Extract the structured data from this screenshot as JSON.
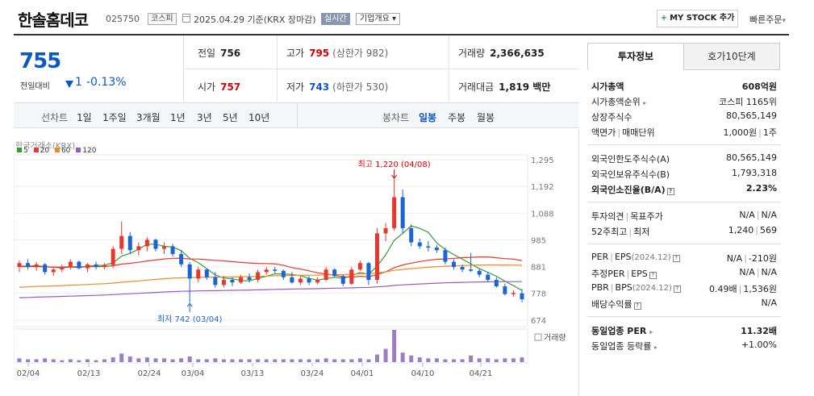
{
  "header": {
    "name": "한솔홈데코",
    "code": "025750",
    "market": "코스피",
    "date": "2025.04.29 기준(KRX 장마감)",
    "realtime": "실시간",
    "company_info": "기업개요",
    "mystock": "MY STOCK 추가",
    "quick_order": "빠른주문"
  },
  "price": {
    "current": "755",
    "change_label": "전일대비",
    "change": "1",
    "change_pct": "-0.13%"
  },
  "quote": {
    "prev_label": "전일",
    "prev": "756",
    "high_label": "고가",
    "high": "795",
    "upper_limit": "(상한가 982)",
    "volume_label": "거래량",
    "volume": "2,366,635",
    "open_label": "시가",
    "open": "757",
    "low_label": "저가",
    "low": "743",
    "lower_limit": "(하한가 530)",
    "value_label": "거래대금",
    "value": "1,819 백만"
  },
  "toolbar": {
    "line_label": "선차트",
    "line_periods": [
      "1일",
      "1주일",
      "3개월",
      "1년",
      "3년",
      "5년",
      "10년"
    ],
    "candle_label": "봉차트",
    "candle_periods": [
      "일봉",
      "주봉",
      "월봉"
    ],
    "selected_candle": "일봉"
  },
  "chart_data": {
    "type": "candlestick",
    "source": "한국거래소(KRX)",
    "legend": [
      {
        "name": "5",
        "color": "#2ca02c"
      },
      {
        "name": "20",
        "color": "#e8382e"
      },
      {
        "name": "60",
        "color": "#f08a24"
      },
      {
        "name": "120",
        "color": "#9b59c2"
      }
    ],
    "y_ticks": [
      1295,
      1192,
      1088,
      985,
      881,
      778,
      674
    ],
    "ylim": [
      674,
      1295
    ],
    "x_ticks": [
      "02/04",
      "02/13",
      "02/24",
      "03/04",
      "03/13",
      "03/24",
      "04/01",
      "04/10",
      "04/21"
    ],
    "high_annotation": "최고 1,220 (04/08)",
    "low_annotation": "최저 742 (03/04)",
    "volume_label": "거래량",
    "candles": [
      {
        "o": 880,
        "h": 905,
        "l": 860,
        "c": 895
      },
      {
        "o": 895,
        "h": 910,
        "l": 870,
        "c": 880
      },
      {
        "o": 880,
        "h": 900,
        "l": 865,
        "c": 890
      },
      {
        "o": 890,
        "h": 895,
        "l": 850,
        "c": 860
      },
      {
        "o": 860,
        "h": 880,
        "l": 845,
        "c": 870
      },
      {
        "o": 870,
        "h": 890,
        "l": 860,
        "c": 880
      },
      {
        "o": 880,
        "h": 910,
        "l": 870,
        "c": 900
      },
      {
        "o": 900,
        "h": 905,
        "l": 870,
        "c": 875
      },
      {
        "o": 875,
        "h": 895,
        "l": 860,
        "c": 890
      },
      {
        "o": 890,
        "h": 900,
        "l": 870,
        "c": 880
      },
      {
        "o": 880,
        "h": 895,
        "l": 870,
        "c": 888
      },
      {
        "o": 888,
        "h": 960,
        "l": 875,
        "c": 950
      },
      {
        "o": 950,
        "h": 1055,
        "l": 930,
        "c": 1000
      },
      {
        "o": 1000,
        "h": 1015,
        "l": 930,
        "c": 945
      },
      {
        "o": 945,
        "h": 975,
        "l": 925,
        "c": 960
      },
      {
        "o": 960,
        "h": 995,
        "l": 940,
        "c": 985
      },
      {
        "o": 985,
        "h": 990,
        "l": 940,
        "c": 950
      },
      {
        "o": 950,
        "h": 975,
        "l": 930,
        "c": 960
      },
      {
        "o": 960,
        "h": 970,
        "l": 920,
        "c": 930
      },
      {
        "o": 930,
        "h": 945,
        "l": 880,
        "c": 890
      },
      {
        "o": 890,
        "h": 900,
        "l": 742,
        "c": 835
      },
      {
        "o": 835,
        "h": 880,
        "l": 820,
        "c": 870
      },
      {
        "o": 870,
        "h": 875,
        "l": 830,
        "c": 840
      },
      {
        "o": 840,
        "h": 860,
        "l": 800,
        "c": 810
      },
      {
        "o": 810,
        "h": 845,
        "l": 800,
        "c": 830
      },
      {
        "o": 830,
        "h": 840,
        "l": 805,
        "c": 820
      },
      {
        "o": 820,
        "h": 850,
        "l": 815,
        "c": 840
      },
      {
        "o": 840,
        "h": 855,
        "l": 820,
        "c": 830
      },
      {
        "o": 830,
        "h": 870,
        "l": 820,
        "c": 860
      },
      {
        "o": 860,
        "h": 880,
        "l": 850,
        "c": 870
      },
      {
        "o": 870,
        "h": 880,
        "l": 855,
        "c": 865
      },
      {
        "o": 865,
        "h": 870,
        "l": 830,
        "c": 840
      },
      {
        "o": 840,
        "h": 860,
        "l": 815,
        "c": 820
      },
      {
        "o": 820,
        "h": 845,
        "l": 810,
        "c": 835
      },
      {
        "o": 835,
        "h": 845,
        "l": 810,
        "c": 820
      },
      {
        "o": 820,
        "h": 840,
        "l": 812,
        "c": 830
      },
      {
        "o": 830,
        "h": 880,
        "l": 825,
        "c": 870
      },
      {
        "o": 870,
        "h": 875,
        "l": 840,
        "c": 845
      },
      {
        "o": 845,
        "h": 850,
        "l": 805,
        "c": 815
      },
      {
        "o": 815,
        "h": 880,
        "l": 810,
        "c": 870
      },
      {
        "o": 870,
        "h": 905,
        "l": 865,
        "c": 895
      },
      {
        "o": 895,
        "h": 900,
        "l": 810,
        "c": 830
      },
      {
        "o": 830,
        "h": 1030,
        "l": 815,
        "c": 1010
      },
      {
        "o": 1010,
        "h": 1050,
        "l": 980,
        "c": 1030
      },
      {
        "o": 1030,
        "h": 1220,
        "l": 1020,
        "c": 1150
      },
      {
        "o": 1150,
        "h": 1180,
        "l": 1010,
        "c": 1030
      },
      {
        "o": 1030,
        "h": 1045,
        "l": 960,
        "c": 975
      },
      {
        "o": 975,
        "h": 990,
        "l": 950,
        "c": 960
      },
      {
        "o": 960,
        "h": 980,
        "l": 940,
        "c": 955
      },
      {
        "o": 955,
        "h": 965,
        "l": 935,
        "c": 945
      },
      {
        "o": 945,
        "h": 955,
        "l": 890,
        "c": 900
      },
      {
        "o": 900,
        "h": 910,
        "l": 870,
        "c": 880
      },
      {
        "o": 880,
        "h": 890,
        "l": 860,
        "c": 870
      },
      {
        "o": 870,
        "h": 935,
        "l": 860,
        "c": 865
      },
      {
        "o": 865,
        "h": 875,
        "l": 840,
        "c": 850
      },
      {
        "o": 850,
        "h": 860,
        "l": 820,
        "c": 830
      },
      {
        "o": 830,
        "h": 840,
        "l": 800,
        "c": 805
      },
      {
        "o": 805,
        "h": 815,
        "l": 770,
        "c": 775
      },
      {
        "o": 775,
        "h": 790,
        "l": 765,
        "c": 780
      },
      {
        "o": 778,
        "h": 795,
        "l": 743,
        "c": 755
      }
    ],
    "volumes": [
      4,
      3,
      3,
      4,
      3,
      2,
      3,
      2,
      3,
      2,
      3,
      5,
      9,
      6,
      4,
      5,
      4,
      4,
      3,
      4,
      6,
      3,
      3,
      4,
      3,
      3,
      3,
      3,
      3,
      3,
      3,
      3,
      3,
      3,
      3,
      3,
      4,
      3,
      3,
      3,
      4,
      3,
      8,
      14,
      34,
      10,
      7,
      5,
      4,
      4,
      3,
      3,
      3,
      7,
      4,
      4,
      3,
      4,
      4,
      5
    ]
  },
  "right_panel": {
    "tabs": [
      "투자정보",
      "호가10단계"
    ],
    "market_cap_label": "시가총액",
    "market_cap": "608억원",
    "cap_rank_label": "시가총액순위",
    "cap_rank": "코스피 1165위",
    "shares_label": "상장주식수",
    "shares": "80,565,149",
    "face_label": "액면가",
    "lot_label": "매매단위",
    "face": "1,000원",
    "lot": "1주",
    "foreign_limit_label": "외국인한도주식수(A)",
    "foreign_limit": "80,565,149",
    "foreign_hold_label": "외국인보유주식수(B)",
    "foreign_hold": "1,793,318",
    "foreign_ratio_label": "외국인소진율(B/A)",
    "foreign_ratio": "2.23%",
    "opinion_label": "투자의견",
    "target_label": "목표주가",
    "opinion": "N/A",
    "target": "N/A",
    "wk52_high_label": "52주최고",
    "wk52_low_label": "최저",
    "wk52_high": "1,240",
    "wk52_low": "569",
    "per_label": "PER",
    "eps_label": "EPS",
    "per_eps_date": "(2024.12)",
    "per": "N/A",
    "eps": "-210원",
    "est_per_label": "추정PER",
    "est_eps_label": "EPS",
    "est_per": "N/A",
    "est_eps": "N/A",
    "pbr_label": "PBR",
    "bps_label": "BPS",
    "pbr_bps_date": "(2024.12)",
    "pbr": "0.49배",
    "bps": "1,536원",
    "div_label": "배당수익률",
    "div": "N/A",
    "sector_per_label": "동일업종 PER",
    "sector_per": "11.32배",
    "sector_rate_label": "동일업종 등락률",
    "sector_rate": "+1.00%"
  }
}
